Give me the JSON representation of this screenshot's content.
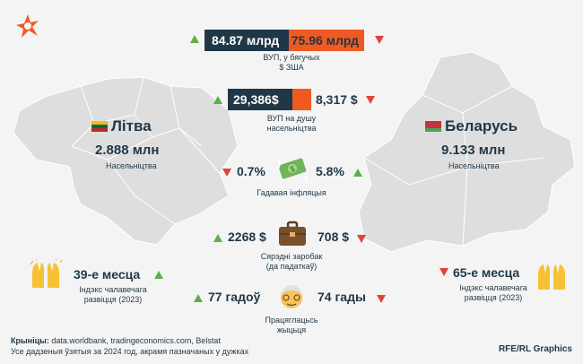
{
  "brand": {
    "logo_icon": "rferl-star-icon",
    "credit": "RFE/RL Graphics"
  },
  "colors": {
    "navy": "#1f3747",
    "orange": "#f05a22",
    "up": "#5cb046",
    "down": "#e0433a",
    "map": "#dedede"
  },
  "gdp": {
    "lt": "84.87 млрд",
    "by": "75.96 млрд",
    "label": "ВУП, у бягучых\n$ ЗША",
    "lt_share": 0.528
  },
  "gdp_pc": {
    "lt": "29,386$",
    "by": "8,317 $",
    "label": "ВУП на душу\nнасельніцтва",
    "by_share": 0.221
  },
  "lithuania": {
    "name": "Літва",
    "population": "2.888 млн",
    "pop_label": "Насельніцтва",
    "flag": [
      "#fdb913",
      "#006a44",
      "#c1272d"
    ]
  },
  "belarus": {
    "name": "Беларусь",
    "population": "9.133 млн",
    "pop_label": "Насельніцтва",
    "flag": [
      "#c8313e",
      "#4aa657"
    ]
  },
  "inflation": {
    "lt": "0.7%",
    "by": "5.8%",
    "label": "Гадавая інфляцыя",
    "icon": "money-icon"
  },
  "salary": {
    "lt": "2268 $",
    "by": "708 $",
    "label": "Сярэдні заробак\n(да падаткаў)",
    "icon": "briefcase-icon"
  },
  "hdi": {
    "lt": "39-е месца",
    "by": "65-е месца",
    "label": "Індэкс чалавечага\nразвіцця (2023)",
    "icon": "raised-hands-icon"
  },
  "life": {
    "lt": "77 гадоў",
    "by": "74 гады",
    "label": "Працяглацьсь\nжыцьця",
    "icon": "older-person-icon"
  },
  "footer": {
    "sources_label": "Крыніцы:",
    "sources": " data.worldbank, tradingeconomics.com, Belstat",
    "note": "Усе дадзеныя ўзятыя за 2024 год, акрамя пазначаных у дужках"
  }
}
